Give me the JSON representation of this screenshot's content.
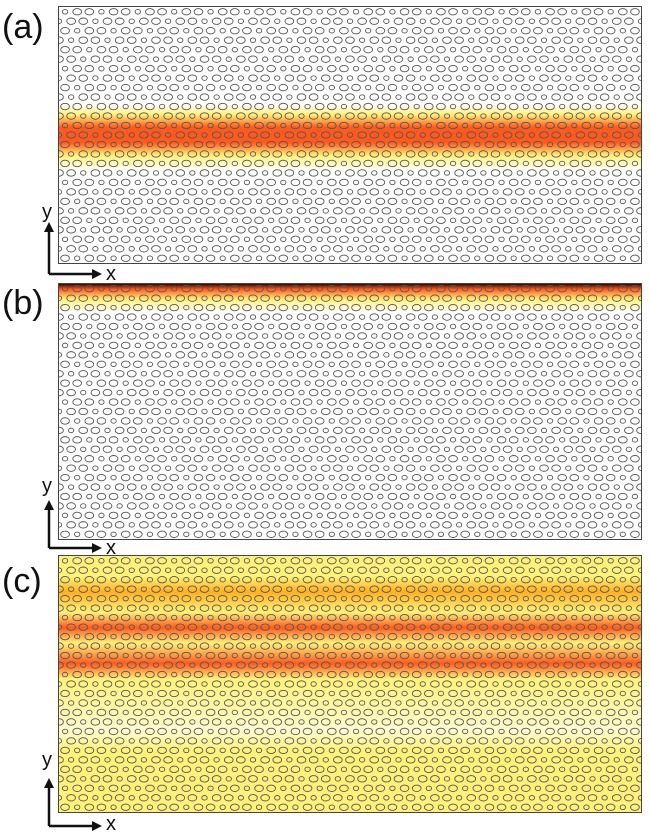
{
  "panels": [
    {
      "id": "a",
      "label": "(a)",
      "field": "a"
    },
    {
      "id": "b",
      "label": "(b)",
      "field": "b"
    },
    {
      "id": "c",
      "label": "(c)",
      "field": "c"
    }
  ],
  "axes": {
    "x": "x",
    "y": "y"
  },
  "colors": {
    "hole_stroke": "#555555",
    "field_low": "#ffffff",
    "field_mid": "#fff27a",
    "field_high": "#ff5a1e",
    "field_peak": "#2a0a00"
  }
}
